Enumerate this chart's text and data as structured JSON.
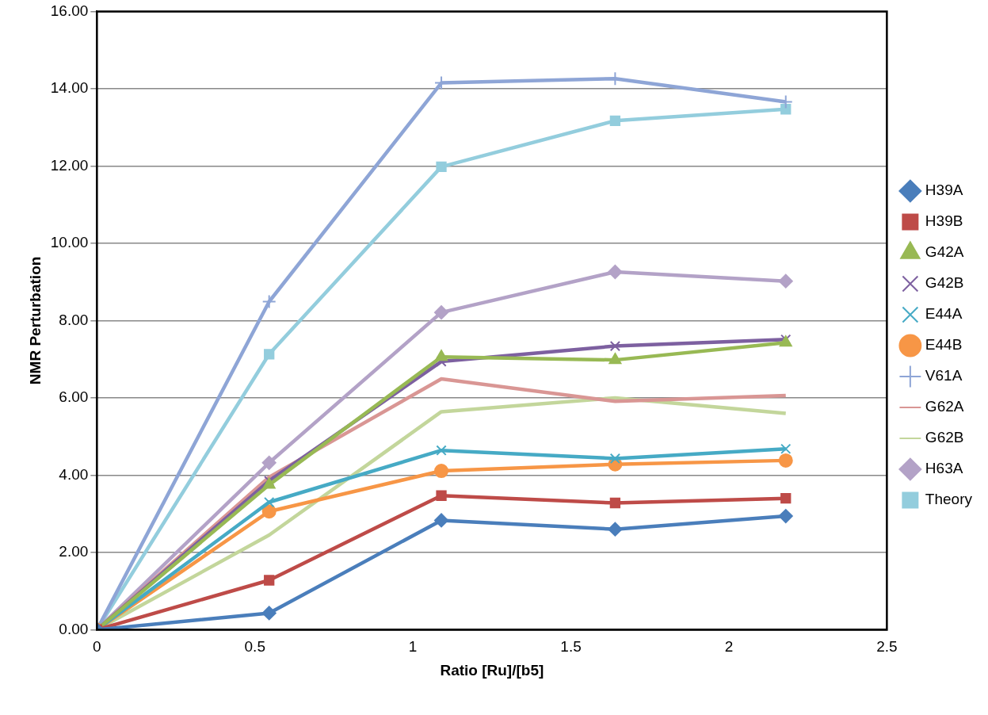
{
  "chart_data": {
    "type": "line",
    "xlabel": "Ratio [Ru]/[b5]",
    "ylabel": "NMR Perturbation",
    "xlim": [
      0,
      2.5
    ],
    "xticks": [
      0,
      0.5,
      1,
      1.5,
      2,
      2.5
    ],
    "ylim": [
      0,
      16
    ],
    "yticks": [
      {
        "value": 0,
        "label": "0.00"
      },
      {
        "value": 2,
        "label": "2.00"
      },
      {
        "value": 4,
        "label": "4.00"
      },
      {
        "value": 6,
        "label": "6.00"
      },
      {
        "value": 8,
        "label": "8.00"
      },
      {
        "value": 10,
        "label": "10.00"
      },
      {
        "value": 12,
        "label": "12.00"
      },
      {
        "value": 14,
        "label": "14.00"
      },
      {
        "value": 16,
        "label": "16.00"
      }
    ],
    "grid": "y",
    "legend": "right",
    "line_style": "solid",
    "x": [
      0,
      0.545,
      1.09,
      1.64,
      2.18
    ],
    "series": [
      {
        "name": "H39A",
        "color": "#4a7ebb",
        "marker": "diamond",
        "values": [
          0,
          0.43,
          2.83,
          2.6,
          2.94
        ]
      },
      {
        "name": "H39B",
        "color": "#be4b48",
        "marker": "square",
        "values": [
          0,
          1.28,
          3.47,
          3.28,
          3.4
        ]
      },
      {
        "name": "G42A",
        "color": "#98b954",
        "marker": "triangle",
        "values": [
          0,
          3.75,
          7.06,
          6.98,
          7.43
        ]
      },
      {
        "name": "G42B",
        "color": "#7d60a0",
        "marker": "cross",
        "values": [
          0,
          3.85,
          6.94,
          7.34,
          7.51
        ]
      },
      {
        "name": "E44A",
        "color": "#46aac5",
        "marker": "cross",
        "values": [
          0,
          3.3,
          4.64,
          4.43,
          4.68
        ]
      },
      {
        "name": "E44B",
        "color": "#f79646",
        "marker": "circle",
        "values": [
          0,
          3.06,
          4.11,
          4.28,
          4.38
        ]
      },
      {
        "name": "V61A",
        "color": "#8ea5d6",
        "marker": "plus",
        "values": [
          0,
          8.49,
          14.15,
          14.26,
          13.66
        ]
      },
      {
        "name": "G62A",
        "color": "#d99694",
        "marker": "none",
        "values": [
          0,
          3.95,
          6.49,
          5.91,
          6.06
        ]
      },
      {
        "name": "G62B",
        "color": "#c3d69b",
        "marker": "none",
        "values": [
          0,
          2.45,
          5.64,
          6.0,
          5.6
        ]
      },
      {
        "name": "H63A",
        "color": "#b3a2c7",
        "marker": "diamond",
        "values": [
          0,
          4.32,
          8.21,
          9.26,
          9.02
        ]
      },
      {
        "name": "Theory",
        "color": "#93cddd",
        "marker": "square",
        "values": [
          0,
          7.13,
          11.98,
          13.17,
          13.47
        ]
      }
    ]
  }
}
